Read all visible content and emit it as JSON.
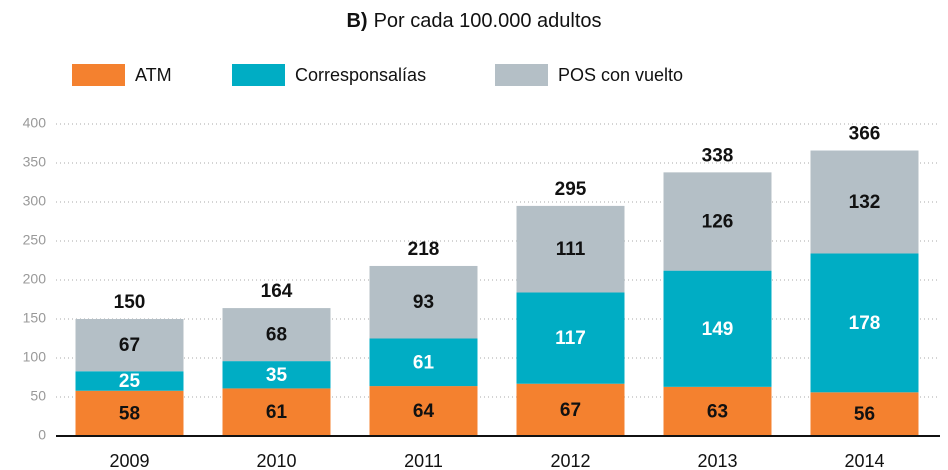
{
  "chart_data": {
    "type": "stacked_bar",
    "title_label": "B)",
    "title": "Por cada 100.000 adultos",
    "categories": [
      "2009",
      "2010",
      "2011",
      "2012",
      "2013",
      "2014"
    ],
    "series": [
      {
        "name": "ATM",
        "color": "#f4812f",
        "label_color": "#111111",
        "values": [
          58,
          61,
          64,
          67,
          63,
          56
        ]
      },
      {
        "name": "Corresponsalías",
        "color": "#00adc4",
        "label_color": "#ffffff",
        "values": [
          25,
          35,
          61,
          117,
          149,
          178
        ]
      },
      {
        "name": "POS con vuelto",
        "color": "#b4bfc6",
        "label_color": "#111111",
        "values": [
          67,
          68,
          93,
          111,
          126,
          132
        ]
      }
    ],
    "totals": [
      150,
      164,
      218,
      295,
      338,
      366
    ],
    "ylim": [
      0,
      400
    ],
    "yticks": [
      0,
      50,
      100,
      150,
      200,
      250,
      300,
      350,
      400
    ],
    "grid": true
  }
}
